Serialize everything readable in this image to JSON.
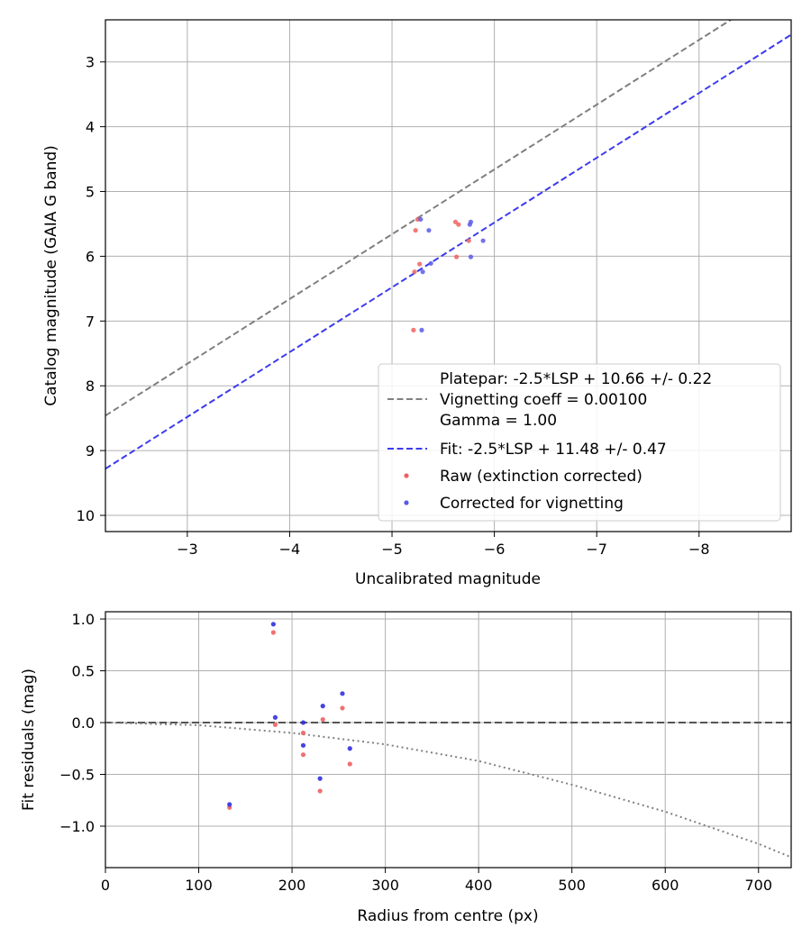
{
  "chart_data": [
    {
      "type": "scatter",
      "xlabel": "Uncalibrated magnitude",
      "ylabel": "Catalog magnitude (GAIA G band)",
      "xlim": [
        -2.2,
        -8.9
      ],
      "ylim": [
        10.25,
        2.35
      ],
      "x_inverted": true,
      "y_inverted": true,
      "grid": true,
      "legend_position": "lower-right",
      "xticks": [
        -3,
        -4,
        -5,
        -6,
        -7,
        -8
      ],
      "xtick_labels": [
        "−3",
        "−4",
        "−5",
        "−6",
        "−7",
        "−8"
      ],
      "yticks": [
        3,
        4,
        5,
        6,
        7,
        8,
        9,
        10
      ],
      "ytick_labels": [
        "3",
        "4",
        "5",
        "6",
        "7",
        "8",
        "9",
        "10"
      ],
      "legend": [
        {
          "label": "Platepar: -2.5*LSP + 10.66 +/- 0.22",
          "style": "none"
        },
        {
          "label": "Vignetting coeff = 0.00100",
          "style": "dashed",
          "color": "#808080"
        },
        {
          "label": "Gamma = 1.00",
          "style": "none"
        },
        {
          "label": "Fit: -2.5*LSP + 11.48 +/- 0.47",
          "style": "dashed",
          "color": "#3b3bf0"
        },
        {
          "label": "Raw (extinction corrected)",
          "style": "dot",
          "color": "#f06060"
        },
        {
          "label": "Corrected for vignetting",
          "style": "dot",
          "color": "#5a5ae6"
        }
      ],
      "lines": [
        {
          "name": "Platepar",
          "intercept": 10.66,
          "slope": 1,
          "style": "dashed",
          "color": "#808080"
        },
        {
          "name": "Fit",
          "intercept": 11.48,
          "slope": 1,
          "style": "dashed",
          "color": "#3b3bf0"
        }
      ],
      "series": [
        {
          "name": "Raw (extinction corrected)",
          "color": "#f06060",
          "points": [
            [
              -5.25,
              5.43
            ],
            [
              -5.23,
              5.6
            ],
            [
              -5.27,
              6.12
            ],
            [
              -5.22,
              6.24
            ],
            [
              -5.21,
              7.14
            ],
            [
              -5.62,
              5.47
            ],
            [
              -5.65,
              5.51
            ],
            [
              -5.75,
              5.76
            ],
            [
              -5.63,
              6.01
            ]
          ]
        },
        {
          "name": "Corrected for vignetting",
          "color": "#5a5ae6",
          "points": [
            [
              -5.28,
              5.43
            ],
            [
              -5.36,
              5.6
            ],
            [
              -5.38,
              6.11
            ],
            [
              -5.3,
              6.24
            ],
            [
              -5.29,
              7.14
            ],
            [
              -5.77,
              5.47
            ],
            [
              -5.76,
              5.51
            ],
            [
              -5.89,
              5.76
            ],
            [
              -5.77,
              6.01
            ]
          ]
        }
      ]
    },
    {
      "type": "scatter",
      "xlabel": "Radius from centre (px)",
      "ylabel": "Fit residuals (mag)",
      "xlim": [
        0,
        735
      ],
      "ylim": [
        -1.4,
        1.07
      ],
      "grid": true,
      "xticks": [
        0,
        100,
        200,
        300,
        400,
        500,
        600,
        700
      ],
      "xtick_labels": [
        "0",
        "100",
        "200",
        "300",
        "400",
        "500",
        "600",
        "700"
      ],
      "yticks": [
        1.0,
        0.5,
        0.0,
        -0.5,
        -1.0
      ],
      "ytick_labels": [
        "1.0",
        "0.5",
        "0.0",
        "−0.5",
        "−1.0"
      ],
      "reference_lines": [
        {
          "name": "zero",
          "value": 0.0,
          "style": "dashed",
          "color": "#555555"
        }
      ],
      "curves": [
        {
          "name": "vignetting",
          "style": "dotted",
          "color": "#808080",
          "points": [
            [
              0,
              0.0
            ],
            [
              100,
              -0.025
            ],
            [
              200,
              -0.1
            ],
            [
              300,
              -0.21
            ],
            [
              400,
              -0.37
            ],
            [
              500,
              -0.6
            ],
            [
              600,
              -0.86
            ],
            [
              700,
              -1.17
            ],
            [
              735,
              -1.3
            ]
          ]
        }
      ],
      "series": [
        {
          "name": "Raw (extinction corrected)",
          "color": "#f06060",
          "points": [
            [
              133,
              -0.82
            ],
            [
              180,
              0.87
            ],
            [
              182,
              -0.02
            ],
            [
              212,
              -0.1
            ],
            [
              212,
              -0.31
            ],
            [
              230,
              -0.66
            ],
            [
              233,
              0.03
            ],
            [
              254,
              0.14
            ],
            [
              262,
              -0.4
            ]
          ]
        },
        {
          "name": "Corrected for vignetting",
          "color": "#3030e0",
          "points": [
            [
              133,
              -0.79
            ],
            [
              180,
              0.95
            ],
            [
              182,
              0.05
            ],
            [
              212,
              0.0
            ],
            [
              212,
              -0.22
            ],
            [
              230,
              -0.54
            ],
            [
              233,
              0.16
            ],
            [
              254,
              0.28
            ],
            [
              262,
              -0.25
            ]
          ]
        }
      ]
    }
  ]
}
